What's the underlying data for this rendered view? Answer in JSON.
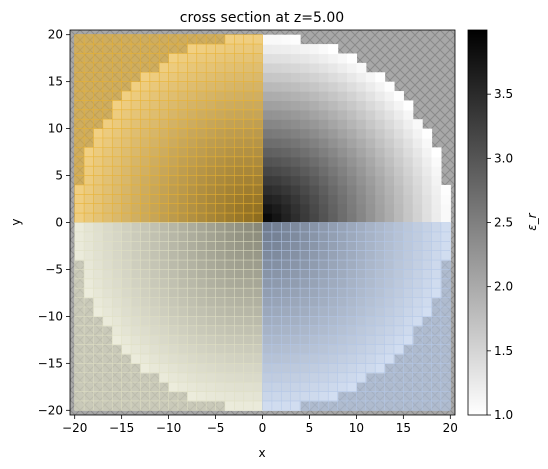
{
  "chart_data": {
    "type": "heatmap",
    "title": "cross section at z=5.00",
    "xlabel": "x",
    "ylabel": "y",
    "xlim": [
      -20.5,
      20.5
    ],
    "ylim": [
      -20.5,
      20.5
    ],
    "xticks": [
      -20,
      -15,
      -10,
      -5,
      0,
      5,
      10,
      15,
      20
    ],
    "yticks": [
      -20,
      -15,
      -10,
      -5,
      0,
      5,
      10,
      15,
      20
    ],
    "xtick_labels": [
      "−20",
      "−15",
      "−10",
      "−5",
      "0",
      "5",
      "10",
      "15",
      "20"
    ],
    "ytick_labels": [
      "−20",
      "−15",
      "−10",
      "−5",
      "0",
      "5",
      "10",
      "15",
      "20"
    ],
    "colorbar": {
      "label": "ε_r",
      "range": [
        1.0,
        4.0
      ],
      "ticks": [
        1.0,
        1.5,
        2.0,
        2.5,
        3.0,
        3.5
      ],
      "tick_labels": [
        "1.0",
        "1.5",
        "2.0",
        "2.5",
        "3.0",
        "3.5"
      ],
      "colormap": "gray_r"
    },
    "structure": {
      "shape": "disk",
      "center": [
        0,
        0
      ],
      "radius": 20,
      "permittivity_at_center": 4.0,
      "permittivity_at_edge": 1.0,
      "background_permittivity": 1.0
    },
    "overlays": [
      {
        "name": "top-left-region",
        "x": [
          -20,
          0
        ],
        "y": [
          0,
          20
        ],
        "color": "#e8b030",
        "grid_step": 1.0
      },
      {
        "name": "bottom-left-region",
        "x": [
          -20,
          0
        ],
        "y": [
          -20,
          0
        ],
        "color": "#e0e0c4",
        "grid_step": 1.0
      },
      {
        "name": "bottom-right-region",
        "x": [
          0,
          20
        ],
        "y": [
          -20,
          0
        ],
        "color": "#b4c8e8",
        "grid_step": 1.0
      }
    ],
    "boundary_hatch_color": "#a0a0a0",
    "grid": false
  }
}
